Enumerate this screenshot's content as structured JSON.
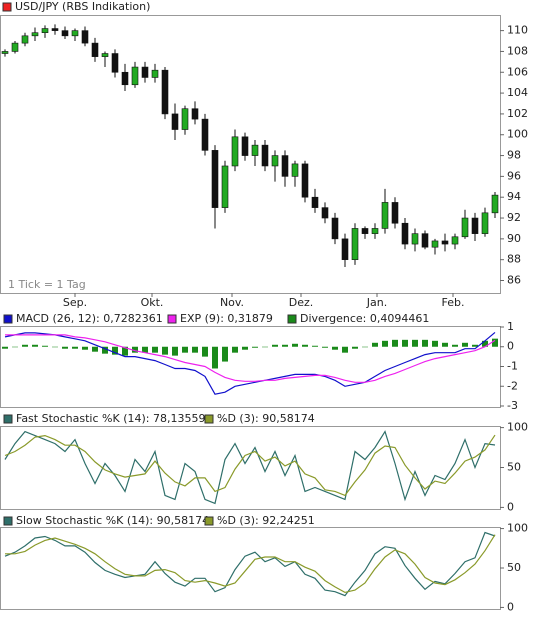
{
  "chart_data": [
    {
      "type": "candlestick",
      "title": "USD/JPY (RBS Indikation)",
      "legend_color": "#ee2222",
      "up_color": "#22aa22",
      "down_color": "#111111",
      "annotation": "1 Tick = 1 Tag",
      "xlim": [
        0,
        50
      ],
      "xticks": [
        {
          "value": 7.5,
          "label": "Sep."
        },
        {
          "value": 15.2,
          "label": "Okt."
        },
        {
          "value": 23.2,
          "label": "Nov."
        },
        {
          "value": 30.1,
          "label": "Dez."
        },
        {
          "value": 37.7,
          "label": "Jan."
        },
        {
          "value": 45.3,
          "label": "Feb."
        }
      ],
      "ylim": [
        84.8,
        111.5
      ],
      "yticks": [
        86,
        88,
        90,
        92,
        94,
        96,
        98,
        100,
        102,
        104,
        106,
        108,
        110
      ],
      "open": [
        107.8,
        108.0,
        108.8,
        109.5,
        109.8,
        110.2,
        110.0,
        109.5,
        110.0,
        108.8,
        107.5,
        107.8,
        106.0,
        104.8,
        106.5,
        105.5,
        106.2,
        102.0,
        100.5,
        102.5,
        101.5,
        98.5,
        93.0,
        97.0,
        99.8,
        98.0,
        99.0,
        97.0,
        98.0,
        96.0,
        97.2,
        94.0,
        93.0,
        92.0,
        90.0,
        88.0,
        91.0,
        90.5,
        91.0,
        93.5,
        91.5,
        89.5,
        90.5,
        89.2,
        89.8,
        89.5,
        90.2,
        92.0,
        90.5,
        92.5
      ],
      "high": [
        108.2,
        109.0,
        109.8,
        110.3,
        110.5,
        110.6,
        110.4,
        110.2,
        110.4,
        109.3,
        108.0,
        108.2,
        106.8,
        107.0,
        107.0,
        106.8,
        106.5,
        103.0,
        102.8,
        103.2,
        102.0,
        99.0,
        97.5,
        100.5,
        100.2,
        99.5,
        99.5,
        98.5,
        98.5,
        97.5,
        97.5,
        94.8,
        93.5,
        92.5,
        90.5,
        91.5,
        91.2,
        91.5,
        94.8,
        94.0,
        92.0,
        91.0,
        90.8,
        90.0,
        90.5,
        90.5,
        92.8,
        92.5,
        93.0,
        94.5
      ],
      "low": [
        107.5,
        107.8,
        108.5,
        109.0,
        109.3,
        109.6,
        109.2,
        109.0,
        108.5,
        107.0,
        106.5,
        105.5,
        104.2,
        104.5,
        105.0,
        105.0,
        101.5,
        99.5,
        100.0,
        101.0,
        98.0,
        91.0,
        92.5,
        96.5,
        97.5,
        97.0,
        96.5,
        95.5,
        95.0,
        95.0,
        93.5,
        92.5,
        91.5,
        89.5,
        87.3,
        87.5,
        90.0,
        90.0,
        90.5,
        91.0,
        89.0,
        88.8,
        89.0,
        88.5,
        88.8,
        89.0,
        90.0,
        89.8,
        90.2,
        92.0
      ],
      "close": [
        108.0,
        108.8,
        109.5,
        109.8,
        110.2,
        110.0,
        109.5,
        110.0,
        108.8,
        107.5,
        107.8,
        106.0,
        104.8,
        106.5,
        105.5,
        106.2,
        102.0,
        100.5,
        102.5,
        101.5,
        98.5,
        93.0,
        97.0,
        99.8,
        98.0,
        99.0,
        97.0,
        98.0,
        96.0,
        97.2,
        94.0,
        93.0,
        92.0,
        90.0,
        88.0,
        91.0,
        90.5,
        91.0,
        93.5,
        91.5,
        89.5,
        90.5,
        89.2,
        89.8,
        89.5,
        90.2,
        92.0,
        90.5,
        92.5,
        94.2
      ]
    },
    {
      "type": "line",
      "ylim": [
        -3.05,
        1.05
      ],
      "yticks": [
        1,
        0,
        -1,
        -2,
        -3
      ],
      "series": [
        {
          "name": "MACD (26, 12): 0,7282361",
          "color": "#1010cc",
          "values": [
            0.5,
            0.6,
            0.7,
            0.7,
            0.65,
            0.6,
            0.5,
            0.4,
            0.3,
            0.1,
            -0.1,
            -0.3,
            -0.5,
            -0.5,
            -0.6,
            -0.7,
            -0.9,
            -1.1,
            -1.1,
            -1.2,
            -1.5,
            -2.4,
            -2.3,
            -2.0,
            -1.9,
            -1.8,
            -1.7,
            -1.6,
            -1.5,
            -1.4,
            -1.4,
            -1.4,
            -1.5,
            -1.7,
            -2.0,
            -1.9,
            -1.8,
            -1.5,
            -1.2,
            -1.0,
            -0.8,
            -0.6,
            -0.4,
            -0.3,
            -0.3,
            -0.3,
            -0.1,
            -0.1,
            0.3,
            0.7282361
          ]
        },
        {
          "name": "EXP (9): 0,31879",
          "color": "#ee22ee",
          "values": [
            0.6,
            0.6,
            0.6,
            0.6,
            0.6,
            0.6,
            0.6,
            0.5,
            0.45,
            0.35,
            0.25,
            0.1,
            -0.05,
            -0.2,
            -0.3,
            -0.4,
            -0.5,
            -0.65,
            -0.8,
            -0.9,
            -1.0,
            -1.3,
            -1.55,
            -1.7,
            -1.75,
            -1.75,
            -1.7,
            -1.7,
            -1.6,
            -1.55,
            -1.5,
            -1.45,
            -1.45,
            -1.55,
            -1.7,
            -1.8,
            -1.8,
            -1.7,
            -1.5,
            -1.35,
            -1.15,
            -0.95,
            -0.75,
            -0.6,
            -0.5,
            -0.4,
            -0.3,
            -0.2,
            0.0,
            0.31879
          ]
        },
        {
          "name": "Divergence: 0,4094461",
          "color": "#1a8a1a",
          "type": "bar",
          "values": [
            -0.1,
            0,
            0.1,
            0.1,
            0.05,
            0,
            -0.1,
            -0.1,
            -0.15,
            -0.25,
            -0.35,
            -0.4,
            -0.45,
            -0.3,
            -0.3,
            -0.3,
            -0.4,
            -0.45,
            -0.3,
            -0.3,
            -0.5,
            -1.1,
            -0.75,
            -0.3,
            -0.15,
            -0.05,
            0,
            0.1,
            0.1,
            0.15,
            0.1,
            0.05,
            -0.05,
            -0.15,
            -0.3,
            -0.1,
            0,
            0.2,
            0.3,
            0.35,
            0.35,
            0.35,
            0.35,
            0.3,
            0.2,
            0.1,
            0.2,
            0.1,
            0.3,
            0.4094461
          ]
        }
      ]
    },
    {
      "type": "line",
      "ylim": [
        -2,
        102
      ],
      "yticks": [
        0,
        50,
        100
      ],
      "series": [
        {
          "name": "Fast Stochastic %K (14): 78,13559",
          "color": "#2f6f6a",
          "values": [
            60,
            80,
            95,
            90,
            85,
            80,
            70,
            85,
            55,
            30,
            55,
            40,
            20,
            60,
            45,
            70,
            15,
            10,
            55,
            45,
            10,
            5,
            60,
            80,
            55,
            75,
            45,
            70,
            40,
            65,
            20,
            25,
            20,
            15,
            10,
            70,
            60,
            75,
            95,
            55,
            10,
            45,
            15,
            40,
            35,
            55,
            85,
            50,
            80,
            78.13559
          ]
        },
        {
          "name": "%D (3): 90,58174",
          "color": "#8a9a2a",
          "values": [
            65,
            70,
            78,
            88,
            90,
            85,
            78,
            78,
            70,
            57,
            47,
            42,
            38,
            40,
            42,
            58,
            43,
            32,
            27,
            37,
            37,
            20,
            25,
            48,
            65,
            70,
            58,
            63,
            52,
            58,
            42,
            37,
            22,
            20,
            15,
            32,
            47,
            68,
            77,
            75,
            53,
            37,
            23,
            33,
            30,
            43,
            58,
            63,
            72,
            90.58174
          ]
        }
      ]
    },
    {
      "type": "line",
      "ylim": [
        -2,
        102
      ],
      "yticks": [
        0,
        50,
        100
      ],
      "series": [
        {
          "name": "Slow Stochastic %K (14): 90,58174",
          "color": "#2f6f6a",
          "values": [
            65,
            70,
            78,
            88,
            90,
            85,
            78,
            78,
            70,
            57,
            47,
            42,
            38,
            40,
            42,
            58,
            43,
            32,
            27,
            37,
            37,
            20,
            25,
            48,
            65,
            70,
            58,
            63,
            52,
            58,
            42,
            37,
            22,
            20,
            15,
            32,
            47,
            68,
            77,
            75,
            53,
            37,
            23,
            33,
            30,
            43,
            58,
            63,
            95,
            90.58174
          ]
        },
        {
          "name": "%D (3): 92,24251",
          "color": "#8a9a2a",
          "values": [
            68,
            68,
            71,
            79,
            85,
            88,
            84,
            80,
            75,
            68,
            58,
            49,
            42,
            40,
            40,
            47,
            48,
            44,
            34,
            32,
            34,
            31,
            27,
            31,
            46,
            61,
            64,
            64,
            58,
            58,
            51,
            46,
            34,
            26,
            19,
            22,
            31,
            49,
            64,
            73,
            68,
            55,
            38,
            31,
            29,
            35,
            44,
            55,
            72,
            92.24251
          ]
        }
      ]
    }
  ]
}
